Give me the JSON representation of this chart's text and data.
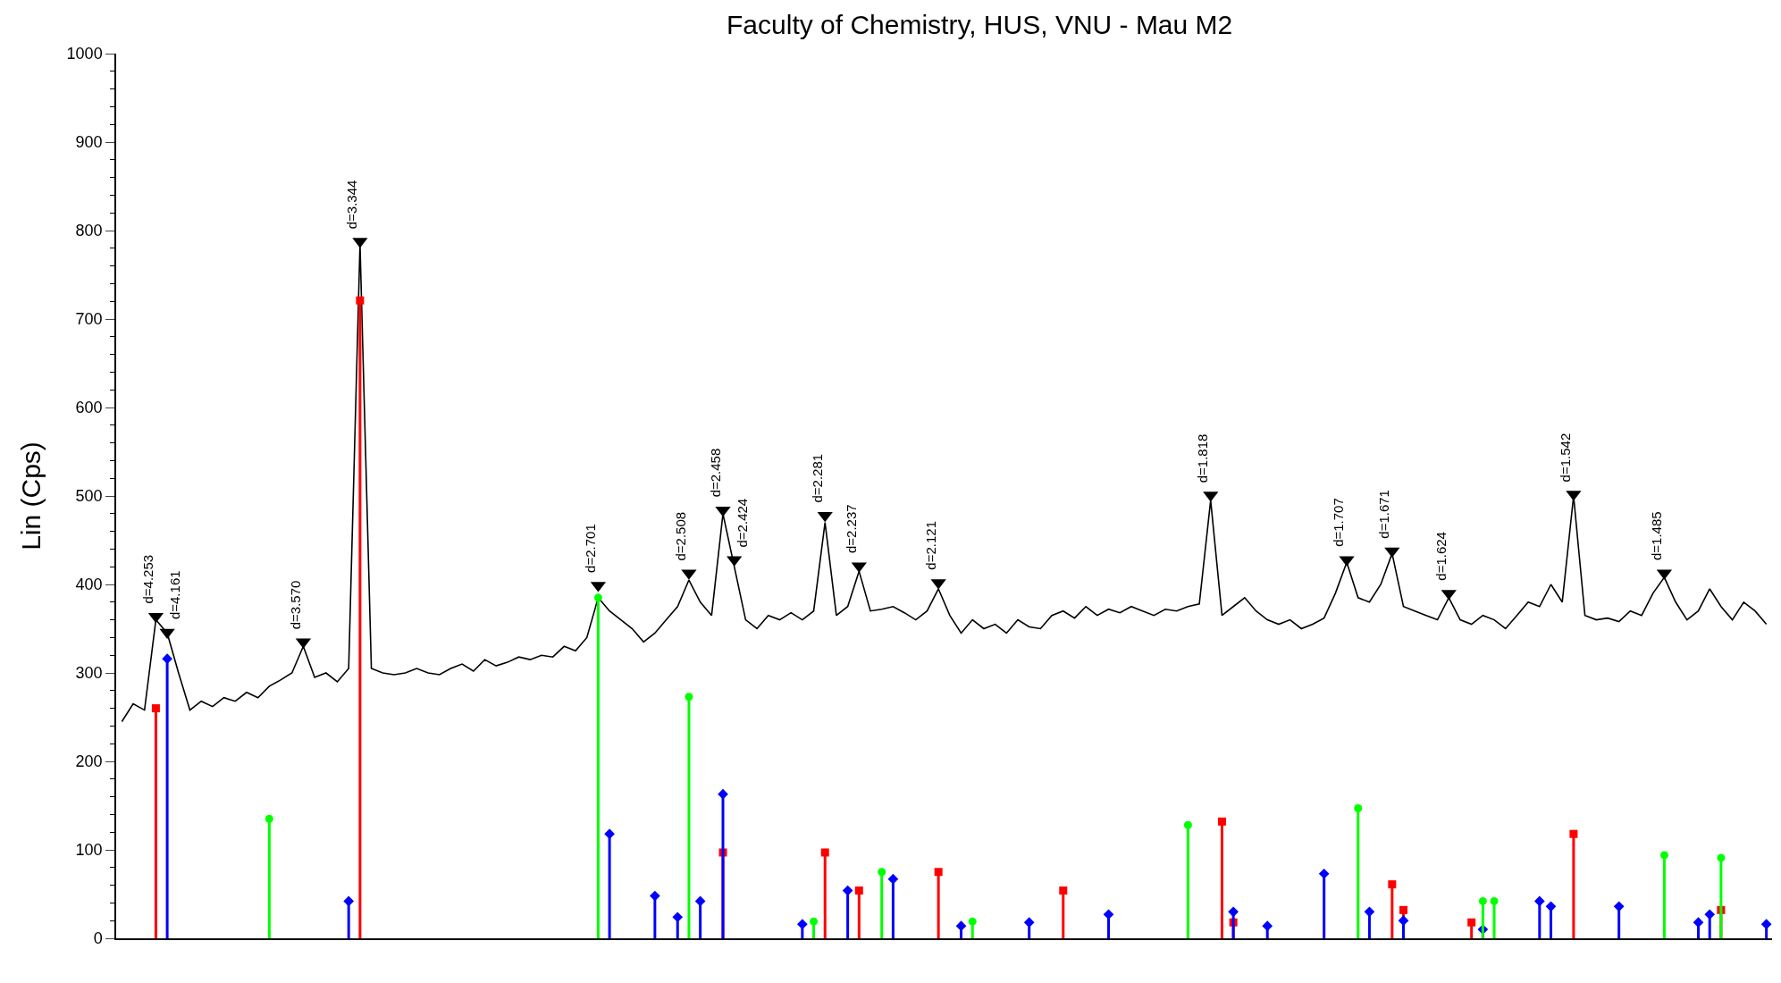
{
  "chart_data": {
    "type": "line",
    "title": "Faculty of Chemistry, HUS, VNU - Mau M2",
    "ylabel": "Lin (Cps)",
    "ylim": [
      0,
      1000
    ],
    "yticks": [
      0,
      100,
      200,
      300,
      400,
      500,
      600,
      700,
      800,
      900,
      1000
    ],
    "grid": false,
    "legend": false,
    "tick_labels": "y",
    "categories": [
      null,
      null,
      null,
      null,
      null,
      null,
      null,
      null,
      null,
      null,
      null,
      null,
      null,
      null,
      null,
      null,
      null,
      null,
      null,
      null,
      null,
      null,
      null,
      null,
      null,
      null,
      null,
      null,
      null,
      null,
      null,
      null,
      null,
      null,
      null,
      null,
      null,
      null,
      null,
      null,
      null,
      null,
      null,
      null,
      null,
      null,
      null,
      null,
      null,
      null,
      null,
      null,
      null,
      null,
      null,
      null,
      null,
      null,
      null,
      null,
      null,
      null,
      null,
      null,
      null,
      null,
      null,
      null,
      null,
      null,
      null,
      null,
      null,
      null,
      null,
      null,
      null,
      null,
      null,
      null,
      null,
      null,
      null,
      null,
      null,
      null,
      null,
      null,
      null,
      null,
      null,
      null,
      null,
      null,
      null,
      null,
      null,
      null,
      null,
      null,
      null,
      null,
      null,
      null,
      null,
      null,
      null,
      null,
      null,
      null,
      null,
      null,
      null,
      null,
      null,
      null,
      null,
      null,
      null,
      null,
      null,
      null,
      null,
      null,
      null,
      null,
      null,
      null,
      null,
      null,
      null,
      null,
      null,
      null,
      null,
      null,
      null,
      null,
      null,
      null,
      null,
      null,
      null,
      null,
      null,
      null
    ],
    "series": [
      {
        "color": "#000000",
        "marker": "none",
        "line_style": "solid",
        "values": [
          245,
          265,
          258,
          360,
          345,
          300,
          258,
          268,
          262,
          272,
          268,
          278,
          272,
          285,
          292,
          300,
          330,
          295,
          300,
          290,
          305,
          785,
          305,
          300,
          298,
          300,
          305,
          300,
          298,
          305,
          310,
          302,
          315,
          308,
          312,
          318,
          315,
          320,
          318,
          330,
          325,
          340,
          385,
          370,
          360,
          350,
          335,
          345,
          360,
          375,
          405,
          380,
          365,
          480,
          420,
          360,
          350,
          365,
          360,
          368,
          360,
          370,
          470,
          365,
          375,
          415,
          370,
          372,
          375,
          368,
          360,
          370,
          395,
          365,
          345,
          360,
          350,
          355,
          345,
          360,
          352,
          350,
          365,
          370,
          362,
          375,
          365,
          372,
          368,
          375,
          370,
          365,
          372,
          370,
          375,
          378,
          495,
          365,
          375,
          385,
          370,
          360,
          355,
          360,
          350,
          355,
          362,
          390,
          425,
          385,
          380,
          400,
          435,
          375,
          370,
          365,
          360,
          385,
          360,
          355,
          365,
          360,
          350,
          365,
          380,
          375,
          400,
          380,
          500,
          365,
          360,
          362,
          358,
          370,
          365,
          390,
          408,
          380,
          360,
          370,
          395,
          375,
          360,
          380,
          370,
          355
        ]
      },
      {
        "type": "lollipop",
        "color": "#ff0000",
        "marker": "square",
        "values": [
          null,
          null,
          null,
          260,
          null,
          null,
          null,
          null,
          null,
          null,
          null,
          null,
          null,
          null,
          null,
          null,
          null,
          null,
          null,
          null,
          null,
          721,
          null,
          null,
          null,
          null,
          null,
          null,
          null,
          null,
          null,
          null,
          null,
          null,
          null,
          null,
          null,
          null,
          null,
          null,
          null,
          null,
          null,
          null,
          null,
          null,
          null,
          null,
          null,
          null,
          null,
          null,
          null,
          97,
          null,
          null,
          null,
          null,
          null,
          null,
          null,
          null,
          97,
          null,
          null,
          54,
          null,
          null,
          null,
          null,
          null,
          null,
          75,
          null,
          null,
          null,
          null,
          null,
          null,
          null,
          null,
          null,
          null,
          54,
          null,
          null,
          null,
          null,
          null,
          null,
          null,
          null,
          null,
          null,
          null,
          null,
          null,
          132,
          18,
          null,
          null,
          null,
          null,
          null,
          null,
          null,
          null,
          null,
          null,
          null,
          null,
          null,
          61,
          32,
          null,
          null,
          null,
          null,
          null,
          18,
          null,
          null,
          null,
          null,
          null,
          null,
          null,
          null,
          118,
          null,
          null,
          null,
          null,
          null,
          null,
          null,
          null,
          null,
          null,
          null,
          null,
          32,
          null,
          null,
          null,
          null
        ]
      },
      {
        "type": "lollipop",
        "color": "#0000ff",
        "marker": "diamond",
        "values": [
          null,
          null,
          null,
          null,
          316,
          null,
          null,
          null,
          null,
          null,
          null,
          null,
          null,
          null,
          null,
          null,
          null,
          null,
          null,
          null,
          42,
          null,
          null,
          null,
          null,
          null,
          null,
          null,
          null,
          null,
          null,
          null,
          null,
          null,
          null,
          null,
          null,
          null,
          null,
          null,
          null,
          null,
          null,
          118,
          null,
          null,
          null,
          48,
          null,
          24,
          null,
          42,
          null,
          163,
          null,
          null,
          null,
          null,
          null,
          null,
          16,
          null,
          null,
          null,
          54,
          null,
          null,
          null,
          67,
          null,
          null,
          null,
          null,
          null,
          14,
          null,
          null,
          null,
          null,
          null,
          18,
          null,
          null,
          null,
          null,
          null,
          null,
          27,
          null,
          null,
          null,
          null,
          null,
          null,
          null,
          null,
          null,
          null,
          30,
          null,
          null,
          14,
          null,
          null,
          null,
          null,
          73,
          null,
          null,
          null,
          30,
          null,
          null,
          20,
          null,
          null,
          null,
          null,
          null,
          null,
          10,
          null,
          null,
          null,
          null,
          42,
          36,
          null,
          null,
          null,
          null,
          null,
          36,
          null,
          null,
          null,
          null,
          null,
          null,
          18,
          27,
          null,
          null,
          null,
          null,
          16
        ]
      },
      {
        "type": "lollipop",
        "color": "#00ff00",
        "marker": "circle",
        "values": [
          null,
          null,
          null,
          null,
          null,
          null,
          null,
          null,
          null,
          null,
          null,
          null,
          null,
          135,
          null,
          null,
          null,
          null,
          null,
          null,
          null,
          null,
          null,
          null,
          null,
          null,
          null,
          null,
          null,
          null,
          null,
          null,
          null,
          null,
          null,
          null,
          null,
          null,
          null,
          null,
          null,
          null,
          385,
          null,
          null,
          null,
          null,
          null,
          null,
          null,
          273,
          null,
          null,
          null,
          null,
          null,
          null,
          null,
          null,
          null,
          null,
          19,
          null,
          null,
          null,
          null,
          null,
          75,
          null,
          null,
          null,
          null,
          null,
          null,
          null,
          19,
          null,
          null,
          null,
          null,
          null,
          null,
          null,
          null,
          null,
          null,
          null,
          null,
          null,
          null,
          null,
          null,
          null,
          null,
          128,
          null,
          null,
          null,
          null,
          null,
          null,
          null,
          null,
          null,
          null,
          null,
          null,
          null,
          null,
          147,
          null,
          null,
          null,
          null,
          null,
          null,
          null,
          null,
          null,
          null,
          42,
          42,
          null,
          null,
          null,
          null,
          null,
          null,
          null,
          null,
          null,
          null,
          null,
          null,
          null,
          null,
          94,
          null,
          null,
          null,
          null,
          91,
          null,
          null,
          null,
          null
        ]
      },
      {
        "type": "scatter",
        "color": "#000000",
        "marker": "triangle",
        "values": [
          null,
          null,
          null,
          364,
          346,
          null,
          null,
          null,
          null,
          null,
          null,
          null,
          null,
          null,
          null,
          null,
          335,
          null,
          null,
          null,
          null,
          788,
          null,
          null,
          null,
          null,
          null,
          null,
          null,
          null,
          null,
          null,
          null,
          null,
          null,
          null,
          null,
          null,
          null,
          null,
          null,
          null,
          399,
          null,
          null,
          null,
          null,
          null,
          null,
          null,
          413,
          null,
          null,
          484,
          428,
          null,
          null,
          null,
          null,
          null,
          null,
          null,
          478,
          null,
          null,
          421,
          null,
          null,
          null,
          null,
          null,
          null,
          402,
          null,
          null,
          null,
          null,
          null,
          null,
          null,
          null,
          null,
          null,
          null,
          null,
          null,
          null,
          null,
          null,
          null,
          null,
          null,
          null,
          null,
          null,
          null,
          501,
          null,
          null,
          null,
          null,
          null,
          null,
          null,
          null,
          null,
          null,
          null,
          428,
          null,
          null,
          null,
          438,
          null,
          null,
          null,
          null,
          390,
          null,
          null,
          null,
          null,
          null,
          null,
          null,
          null,
          null,
          null,
          502,
          null,
          null,
          null,
          null,
          null,
          null,
          null,
          413,
          null,
          null,
          null,
          null,
          null,
          null,
          null,
          null,
          null
        ],
        "name": null
      }
    ],
    "annotations": [
      {
        "text": "d=4.253",
        "y": 364
      },
      {
        "text": "d=4.161",
        "y": 346
      },
      {
        "text": "d=3.570",
        "y": 335
      },
      {
        "text": "d=3.344",
        "y": 788
      },
      {
        "text": "d=2.701",
        "y": 399
      },
      {
        "text": "d=2.508",
        "y": 413
      },
      {
        "text": "d=2.458",
        "y": 484
      },
      {
        "text": "d=2.424",
        "y": 428
      },
      {
        "text": "d=2.281",
        "y": 478
      },
      {
        "text": "d=2.237",
        "y": 421
      },
      {
        "text": "d=2.121",
        "y": 402
      },
      {
        "text": "d=1.818",
        "y": 501
      },
      {
        "text": "d=1.707",
        "y": 428
      },
      {
        "text": "d=1.671",
        "y": 438
      },
      {
        "text": "d=1.624",
        "y": 390
      },
      {
        "text": "d=1.542",
        "y": 502
      },
      {
        "text": "d=1.485",
        "y": 413
      }
    ]
  }
}
